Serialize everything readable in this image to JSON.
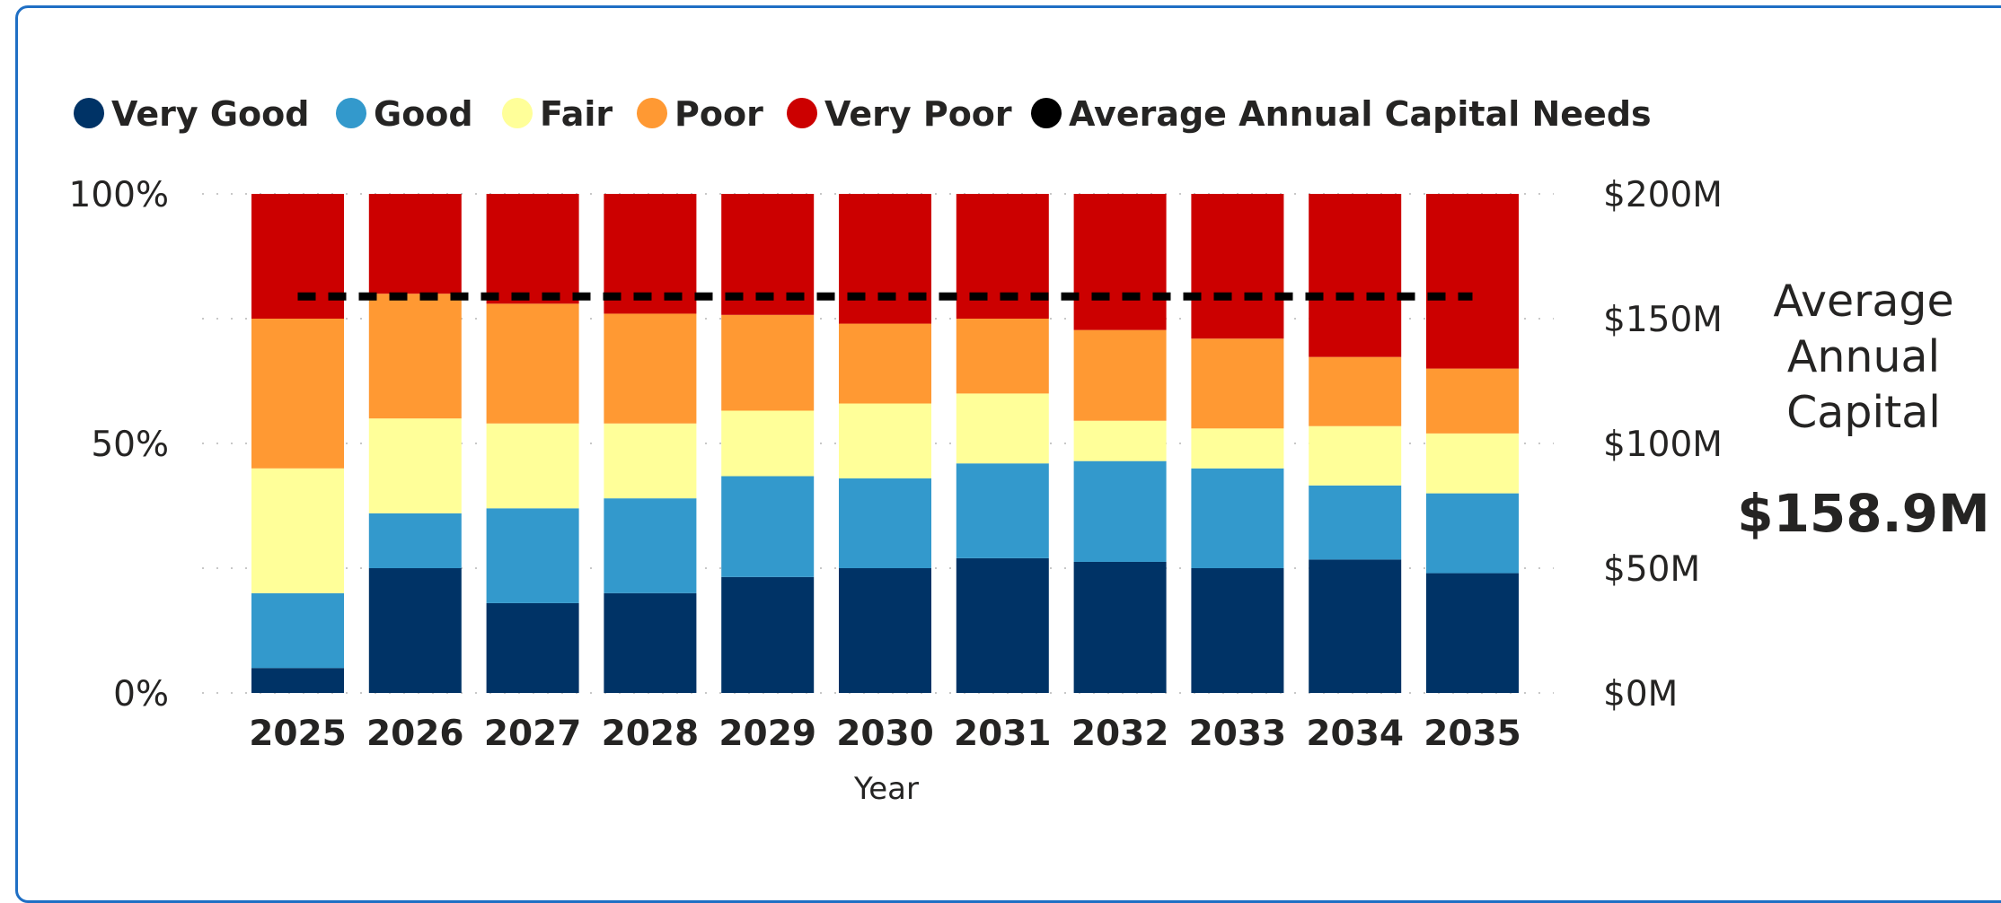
{
  "card": {
    "label_lines": [
      "Average",
      "Annual",
      "Capital"
    ],
    "value": "$158.9M"
  },
  "chart_data": {
    "type": "bar",
    "stacked": true,
    "normalized": true,
    "categories": [
      "2025",
      "2026",
      "2027",
      "2028",
      "2029",
      "2030",
      "2031",
      "2032",
      "2033",
      "2034",
      "2035"
    ],
    "series": [
      {
        "name": "Very Good",
        "color": "#003366",
        "values": [
          5,
          25,
          18,
          20,
          23,
          25,
          27,
          26,
          25,
          27,
          24
        ]
      },
      {
        "name": "Good",
        "color": "#3399cc",
        "values": [
          15,
          11,
          19,
          19,
          20,
          18,
          19,
          20,
          20,
          15,
          16
        ]
      },
      {
        "name": "Fair",
        "color": "#ffff99",
        "values": [
          25,
          19,
          17,
          15,
          13,
          15,
          14,
          8,
          8,
          12,
          12
        ]
      },
      {
        "name": "Poor",
        "color": "#ff9933",
        "values": [
          30,
          25,
          24,
          22,
          19,
          16,
          15,
          18,
          18,
          14,
          13
        ]
      },
      {
        "name": "Very Poor",
        "color": "#cc0000",
        "values": [
          25,
          20,
          22,
          24,
          24,
          26,
          25,
          27,
          29,
          33,
          35
        ]
      }
    ],
    "line": {
      "name": "Average Annual Capital Needs",
      "color": "#000000",
      "value_millions": 158.9,
      "style": "dashed"
    },
    "legend": {
      "position": "top-left",
      "items": [
        {
          "label": "Very Good",
          "color": "#003366"
        },
        {
          "label": "Good",
          "color": "#3399cc"
        },
        {
          "label": "Fair",
          "color": "#ffff99"
        },
        {
          "label": "Poor",
          "color": "#ff9933"
        },
        {
          "label": "Very Poor",
          "color": "#cc0000"
        },
        {
          "label": "Average Annual Capital Needs",
          "color": "#000000"
        }
      ]
    },
    "xlabel": "Year",
    "ylim": [
      0,
      100
    ],
    "y_ticks": [
      "0%",
      "50%",
      "100%"
    ],
    "y_tick_values": [
      0,
      50,
      100
    ],
    "y2lim": [
      0,
      200
    ],
    "y2_ticks": [
      "$0M",
      "$50M",
      "$100M",
      "$150M",
      "$200M"
    ],
    "y2_tick_values": [
      0,
      50,
      100,
      150,
      200
    ],
    "grid": "dotted"
  }
}
